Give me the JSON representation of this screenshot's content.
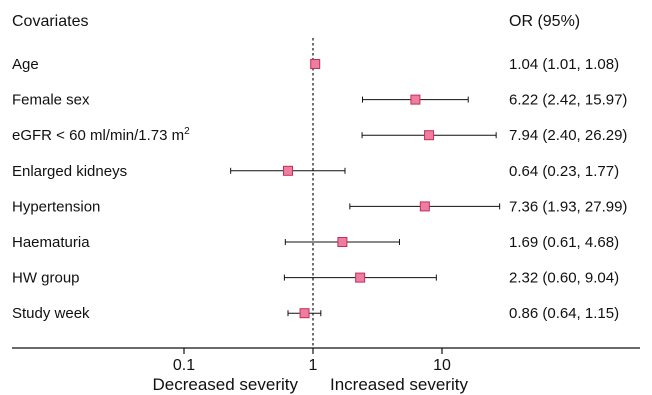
{
  "chart_data": {
    "type": "forest",
    "header_left": "Covariates",
    "header_right": "OR (95%)",
    "rows": [
      {
        "label": "Age",
        "or": 1.04,
        "lo": 1.01,
        "hi": 1.08,
        "text": "1.04 (1.01, 1.08)"
      },
      {
        "label": "Female sex",
        "or": 6.22,
        "lo": 2.42,
        "hi": 15.97,
        "text": "6.22 (2.42, 15.97)"
      },
      {
        "label": "eGFR < 60 ml/min/1.73 m",
        "label_sup": "2",
        "or": 7.94,
        "lo": 2.4,
        "hi": 26.29,
        "text": "7.94 (2.40, 26.29)"
      },
      {
        "label": "Enlarged kidneys",
        "or": 0.64,
        "lo": 0.23,
        "hi": 1.77,
        "text": "0.64 (0.23, 1.77)"
      },
      {
        "label": "Hypertension",
        "or": 7.36,
        "lo": 1.93,
        "hi": 27.99,
        "text": "7.36 (1.93, 27.99)"
      },
      {
        "label": "Haematuria",
        "or": 1.69,
        "lo": 0.61,
        "hi": 4.68,
        "text": "1.69 (0.61, 4.68)"
      },
      {
        "label": "HW group",
        "or": 2.32,
        "lo": 0.6,
        "hi": 9.04,
        "text": "2.32 (0.60, 9.04)"
      },
      {
        "label": "Study week",
        "or": 0.86,
        "lo": 0.64,
        "hi": 1.15,
        "text": "0.86 (0.64, 1.15)"
      }
    ],
    "x_scale": "log",
    "x_ticks": [
      {
        "value": 0.1,
        "label": "0.1"
      },
      {
        "value": 1,
        "label": "1"
      },
      {
        "value": 10,
        "label": "10"
      }
    ],
    "reference_line": 1,
    "xlabel_left": "Decreased severity",
    "xlabel_right": "Increased severity",
    "colors": {
      "marker_fill": "#f07ca0",
      "marker_edge": "#c0305c",
      "line": "#111111"
    }
  }
}
